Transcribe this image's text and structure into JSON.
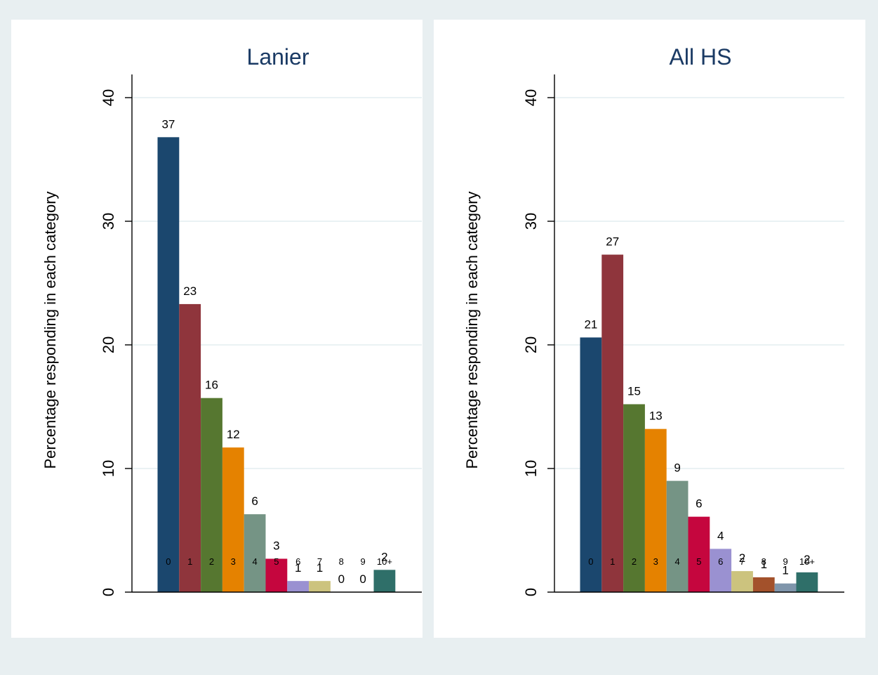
{
  "colors": {
    "outer_background": "#e8eff1",
    "plot_background": "#ffffff",
    "grid": "#e4eef0",
    "axis": "#000000",
    "title_text": "#1a3a64",
    "bar_palette": [
      "#1b476e",
      "#8f353c",
      "#567730",
      "#e58200",
      "#759485",
      "#c5063e",
      "#9a91d1",
      "#ccc37e",
      "#a3512b",
      "#7f95ab",
      "#2f6f69"
    ]
  },
  "chart_data": [
    {
      "type": "bar",
      "title": "Lanier",
      "ylabel": "Percentage responding in each category",
      "xlabel": "",
      "categories": [
        "0",
        "1",
        "2",
        "3",
        "4",
        "5",
        "6",
        "7",
        "8",
        "9",
        "10+"
      ],
      "values": [
        36.8,
        23.3,
        15.7,
        11.7,
        6.3,
        2.7,
        0.9,
        0.9,
        0,
        0,
        1.8
      ],
      "value_labels": [
        "37",
        "23",
        "16",
        "12",
        "6",
        "3",
        "1",
        "1",
        "0",
        "0",
        "2"
      ],
      "ylim": [
        0,
        40
      ],
      "yticks": [
        0,
        10,
        20,
        30,
        40
      ],
      "ytick_labels": [
        "0",
        "10",
        "20",
        "30",
        "40"
      ],
      "grid": true,
      "legend": "none"
    },
    {
      "type": "bar",
      "title": "All HS",
      "ylabel": "Percentage responding in each category",
      "xlabel": "",
      "categories": [
        "0",
        "1",
        "2",
        "3",
        "4",
        "5",
        "6",
        "7",
        "8",
        "9",
        "10+"
      ],
      "values": [
        20.6,
        27.3,
        15.2,
        13.2,
        9.0,
        6.1,
        3.5,
        1.7,
        1.2,
        0.7,
        1.6
      ],
      "value_labels": [
        "21",
        "27",
        "15",
        "13",
        "9",
        "6",
        "4",
        "2",
        "1",
        "1",
        "2"
      ],
      "ylim": [
        0,
        40
      ],
      "yticks": [
        0,
        10,
        20,
        30,
        40
      ],
      "ytick_labels": [
        "0",
        "10",
        "20",
        "30",
        "40"
      ],
      "grid": true,
      "legend": "none"
    }
  ]
}
